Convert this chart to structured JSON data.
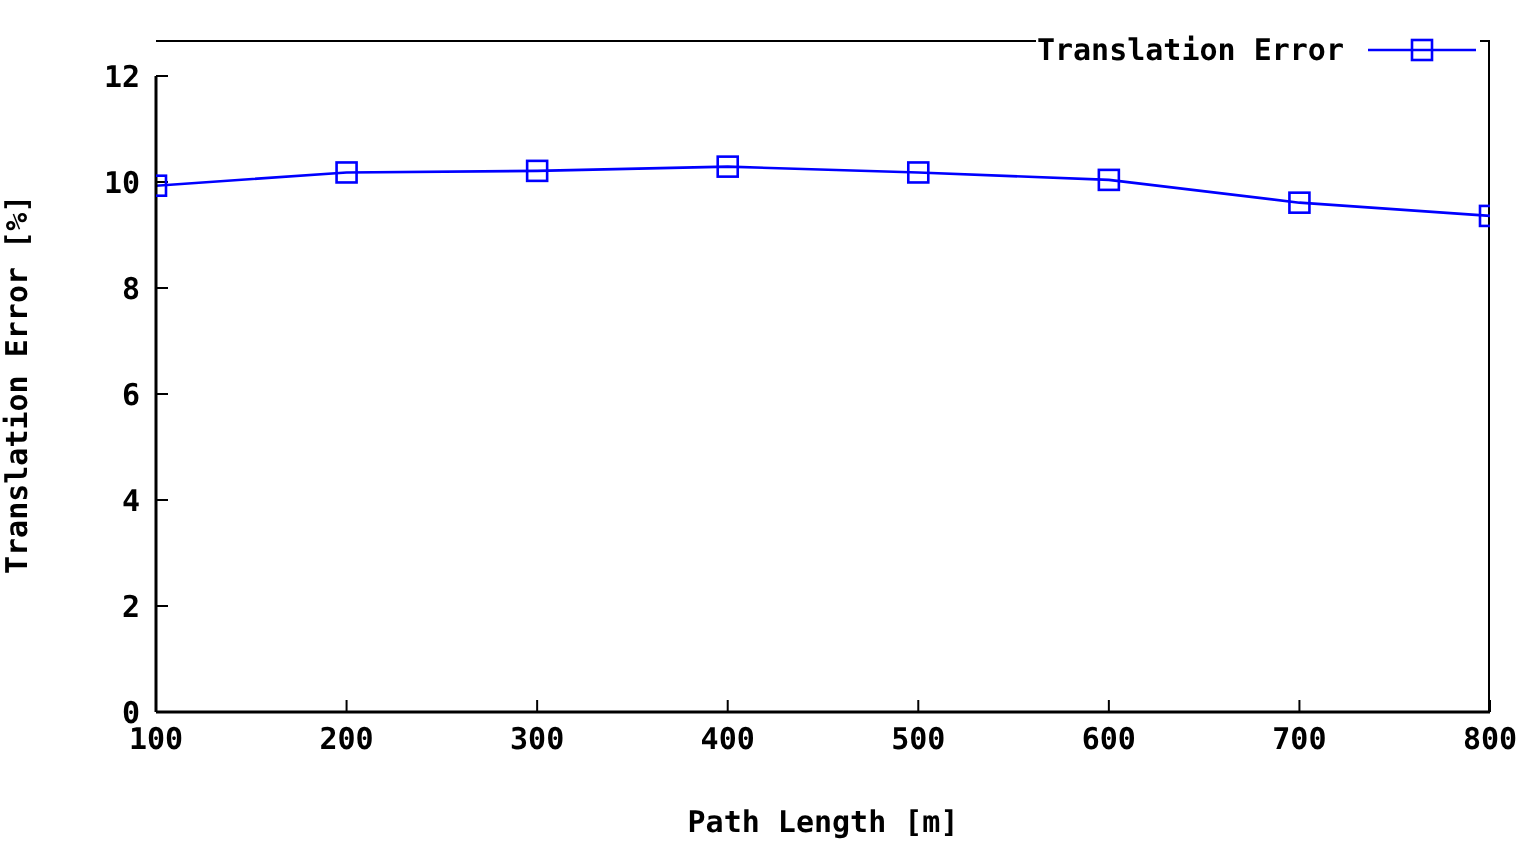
{
  "chart_data": {
    "type": "line",
    "xlabel": "Path Length [m]",
    "ylabel": "Translation Error [%]",
    "x": [
      100,
      200,
      300,
      400,
      500,
      600,
      700,
      800
    ],
    "series": [
      {
        "name": "Translation Error",
        "color": "#0000ff",
        "values": [
          9.93,
          10.18,
          10.21,
          10.29,
          10.18,
          10.04,
          9.61,
          9.36
        ]
      }
    ],
    "xlim": [
      100,
      800
    ],
    "xticks": [
      100,
      200,
      300,
      400,
      500,
      600,
      700,
      800
    ],
    "ylim": [
      0,
      12
    ],
    "yticks": [
      0,
      2,
      4,
      6,
      8,
      10,
      12
    ],
    "legend": "top right",
    "marker": "square",
    "line_style": "solid",
    "grid": false
  }
}
